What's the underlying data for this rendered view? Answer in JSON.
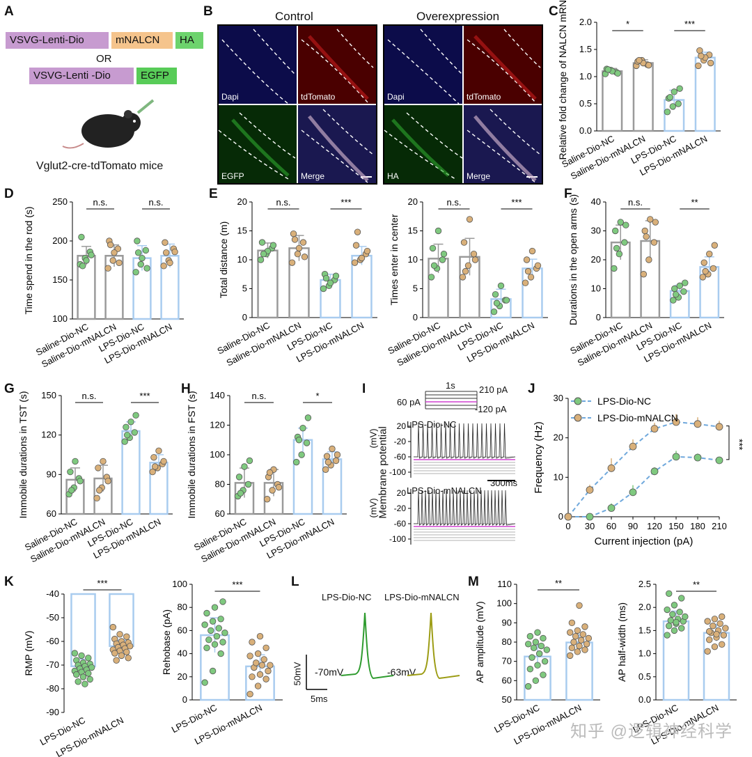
{
  "colors": {
    "green": "#7fc97f",
    "tan": "#d9b07a",
    "gray_bar": "#9a9a9a",
    "blue_bar": "#a9ccef",
    "trace_green": "#2e9b2e",
    "trace_olive": "#9c9c14",
    "vsvg": "#c79bd0",
    "mnalcn": "#f5c48c",
    "ha": "#6dd36d",
    "egfp": "#58cc58"
  },
  "panels": {
    "A": {
      "letter": "A",
      "line1": [
        "VSVG-Lenti-Dio",
        "mNALCN",
        "HA"
      ],
      "or": "OR",
      "line2": [
        "VSVG-Lenti -Dio",
        "EGFP"
      ],
      "mice": "Vglut2-cre-tdTomato mice"
    },
    "B": {
      "letter": "B",
      "control": "Control",
      "overexp": "Overexpression",
      "tiles_ctrl": [
        "Dapi",
        "tdTomato",
        "EGFP",
        "Merge"
      ],
      "tiles_oe": [
        "Dapi",
        "tdTomato",
        "HA",
        "Merge"
      ]
    },
    "C": {
      "letter": "C"
    },
    "D": {
      "letter": "D"
    },
    "E": {
      "letter": "E"
    },
    "F": {
      "letter": "F"
    },
    "G": {
      "letter": "G"
    },
    "H": {
      "letter": "H"
    },
    "I": {
      "letter": "I",
      "t1": "1s",
      "t2": "210 pA",
      "t3": "60 pA",
      "t4": "-120 pA",
      "ylabel": "Membrane potential",
      "unit1": "(mV)",
      "unit2": "(mV)",
      "nc": "LPS-Dio-NC",
      "mn": "LPS-Dio-mNALCN",
      "scale": "300ms",
      "ticks": [
        "20",
        "-20",
        "-60",
        "-100"
      ]
    },
    "J": {
      "letter": "J"
    },
    "K": {
      "letter": "K"
    },
    "L": {
      "letter": "L",
      "nc": "LPS-Dio-NC",
      "mn": "LPS-Dio-mNALCN",
      "v1": "-70mV",
      "v2": "-63mV",
      "sy": "50mV",
      "sx": "5ms"
    },
    "M": {
      "letter": "M"
    }
  },
  "chart_data": [
    {
      "id": "C",
      "type": "bar",
      "ylabel": "Relative fold change of NALCN mRNA",
      "categories": [
        "Saline-Dio-NC",
        "Saline-Dio-mNALCN",
        "LPS-Dio-NC",
        "LPS-Dio-mNALCN"
      ],
      "values": [
        1.1,
        1.25,
        0.57,
        1.35
      ],
      "sd": [
        0.05,
        0.06,
        0.18,
        0.1
      ],
      "ylim": [
        0,
        2.0
      ],
      "yticks": [
        0.0,
        0.5,
        1.0,
        1.5,
        2.0
      ],
      "sig": [
        {
          "pair": [
            0,
            1
          ],
          "label": "*"
        },
        {
          "pair": [
            2,
            3
          ],
          "label": "***"
        }
      ],
      "points": [
        [
          1.05,
          1.12,
          1.08,
          1.14,
          1.1,
          1.06,
          1.13
        ],
        [
          1.2,
          1.3,
          1.22,
          1.28,
          1.25,
          1.21,
          1.3
        ],
        [
          0.35,
          0.45,
          0.5,
          0.6,
          0.72,
          0.78,
          0.62
        ],
        [
          1.2,
          1.3,
          1.4,
          1.48,
          1.35,
          1.25,
          1.38
        ]
      ]
    },
    {
      "id": "D",
      "type": "bar",
      "ylabel": "Time spend in the rod (s)",
      "categories": [
        "Saline-Dio-NC",
        "Saline-Dio-mNALCN",
        "LPS-Dio-NC",
        "LPS-Dio-mNALCN"
      ],
      "values": [
        181,
        181,
        178,
        181
      ],
      "sd": [
        12,
        14,
        16,
        15
      ],
      "ylim": [
        100,
        250
      ],
      "yticks": [
        100,
        150,
        200,
        250
      ],
      "sig": [
        {
          "pair": [
            0,
            1
          ],
          "label": "n.s."
        },
        {
          "pair": [
            2,
            3
          ],
          "label": "n.s."
        }
      ],
      "points": [
        [
          170,
          178,
          186,
          205,
          175,
          182,
          168
        ],
        [
          165,
          175,
          190,
          200,
          185,
          172,
          195
        ],
        [
          160,
          170,
          188,
          200,
          178,
          165,
          185
        ],
        [
          168,
          175,
          190,
          198,
          172,
          186,
          185
        ]
      ]
    },
    {
      "id": "E1",
      "type": "bar",
      "ylabel": "Total distance (m)",
      "categories": [
        "Saline-Dio-NC",
        "Saline-Dio-mNALCN",
        "LPS-Dio-NC",
        "LPS-Dio-mNALCN"
      ],
      "values": [
        11.6,
        12.0,
        6.5,
        10.7
      ],
      "sd": [
        1.3,
        2.2,
        1.0,
        1.6
      ],
      "ylim": [
        0,
        20
      ],
      "yticks": [
        0,
        5,
        10,
        15,
        20
      ],
      "sig": [
        {
          "pair": [
            0,
            1
          ],
          "label": "n.s."
        },
        {
          "pair": [
            2,
            3
          ],
          "label": "***"
        }
      ],
      "points": [
        [
          10,
          11,
          12,
          13,
          11.5,
          12.5,
          11
        ],
        [
          9.5,
          11,
          13,
          14.5,
          12,
          10.5,
          13.5
        ],
        [
          5,
          5.5,
          6.5,
          7.5,
          6,
          7.2,
          6.8
        ],
        [
          9.5,
          10,
          11,
          12.5,
          10.3,
          11.5,
          14.8
        ]
      ]
    },
    {
      "id": "E2",
      "type": "bar",
      "ylabel": "Times enter in center",
      "categories": [
        "Saline-Dio-NC",
        "Saline-Dio-mNALCN",
        "LPS-Dio-NC",
        "LPS-Dio-mNALCN"
      ],
      "values": [
        10.2,
        10.5,
        3.2,
        8.5
      ],
      "sd": [
        2.5,
        3.2,
        1.7,
        1.6
      ],
      "ylim": [
        0,
        20
      ],
      "yticks": [
        0,
        5,
        10,
        15,
        20
      ],
      "sig": [
        {
          "pair": [
            0,
            1
          ],
          "label": "n.s."
        },
        {
          "pair": [
            2,
            3
          ],
          "label": "***"
        }
      ],
      "points": [
        [
          7,
          8.5,
          10,
          12,
          15,
          11,
          9
        ],
        [
          7,
          9,
          11,
          13,
          17,
          10,
          8
        ],
        [
          1,
          2,
          3,
          4,
          5.5,
          3,
          2.5
        ],
        [
          6,
          7,
          8.5,
          10,
          11.5,
          9,
          8
        ]
      ]
    },
    {
      "id": "F",
      "type": "bar",
      "ylabel": "Durations in the open arms (s)",
      "categories": [
        "Saline-Dio-NC",
        "Saline-Dio-mNALCN",
        "LPS-Dio-NC",
        "LPS-Dio-mNALCN"
      ],
      "values": [
        26,
        26.5,
        9.2,
        17.5
      ],
      "sd": [
        6,
        7,
        2,
        3.5
      ],
      "ylim": [
        0,
        40
      ],
      "yticks": [
        0,
        10,
        20,
        30,
        40
      ],
      "sig": [
        {
          "pair": [
            0,
            1
          ],
          "label": "n.s."
        },
        {
          "pair": [
            2,
            3
          ],
          "label": "**"
        }
      ],
      "points": [
        [
          17,
          22,
          26,
          30,
          33,
          32,
          24
        ],
        [
          15,
          20,
          26,
          30,
          34,
          33,
          28
        ],
        [
          6,
          7,
          9,
          10,
          11,
          12,
          8
        ],
        [
          14,
          15,
          17,
          19,
          22,
          25,
          16
        ]
      ]
    },
    {
      "id": "G",
      "type": "bar",
      "ylabel": "Immobile durations in TST (s)",
      "categories": [
        "Saline-Dio-NC",
        "Saline-Dio-mNALCN",
        "LPS-Dio-NC",
        "LPS-Dio-mNALCN"
      ],
      "values": [
        86,
        87,
        123,
        99
      ],
      "sd": [
        9,
        10,
        7,
        6
      ],
      "ylim": [
        60,
        150
      ],
      "yticks": [
        60,
        90,
        120,
        150
      ],
      "sig": [
        {
          "pair": [
            0,
            1
          ],
          "label": "n.s."
        },
        {
          "pair": [
            2,
            3
          ],
          "label": "***"
        }
      ],
      "points": [
        [
          75,
          80,
          87,
          92,
          100,
          85,
          78
        ],
        [
          72,
          80,
          88,
          95,
          100,
          85,
          78
        ],
        [
          115,
          118,
          122,
          126,
          130,
          135,
          120
        ],
        [
          92,
          95,
          98,
          103,
          108,
          100,
          96
        ]
      ]
    },
    {
      "id": "H",
      "type": "bar",
      "ylabel": "Immobile durations in FST (s)",
      "categories": [
        "Saline-Dio-NC",
        "Saline-Dio-mNALCN",
        "LPS-Dio-NC",
        "LPS-Dio-mNALCN"
      ],
      "values": [
        81,
        81,
        110,
        97
      ],
      "sd": [
        10,
        9,
        8,
        5
      ],
      "ylim": [
        60,
        140
      ],
      "yticks": [
        60,
        80,
        100,
        120,
        140
      ],
      "sig": [
        {
          "pair": [
            0,
            1
          ],
          "label": "n.s."
        },
        {
          "pair": [
            2,
            3
          ],
          "label": "*"
        }
      ],
      "points": [
        [
          72,
          76,
          80,
          85,
          92,
          96,
          74
        ],
        [
          70,
          76,
          80,
          85,
          90,
          78,
          88
        ],
        [
          95,
          100,
          108,
          112,
          118,
          125,
          110
        ],
        [
          90,
          93,
          96,
          99,
          104,
          100,
          95
        ]
      ]
    },
    {
      "id": "J",
      "type": "line",
      "xlabel": "Current injection (pA)",
      "ylabel": "Frequency (Hz)",
      "x": [
        0,
        30,
        60,
        90,
        120,
        150,
        180,
        210
      ],
      "xlim": [
        0,
        210
      ],
      "ylim": [
        0,
        30
      ],
      "yticks": [
        0,
        10,
        20,
        30
      ],
      "series": [
        {
          "name": "LPS-Dio-NC",
          "values": [
            0,
            0,
            2.2,
            6.2,
            11.5,
            15.2,
            15.0,
            14.3
          ],
          "err": [
            0,
            0,
            1.2,
            1.8,
            1.0,
            1.5,
            1.0,
            0.8
          ]
        },
        {
          "name": "LPS-Dio-mNALCN",
          "values": [
            0,
            6.8,
            12.3,
            17.8,
            22.3,
            24.0,
            23.5,
            22.8
          ],
          "err": [
            0,
            1.3,
            2.5,
            1.8,
            1.5,
            2.0,
            1.7,
            1.5
          ]
        }
      ],
      "sig": "***"
    },
    {
      "id": "K1",
      "type": "bar",
      "ylabel": "RMP (mV)",
      "categories": [
        "LPS-Dio-NC",
        "LPS-Dio-mNALCN"
      ],
      "values": [
        -70.5,
        -62
      ],
      "sd": [
        3,
        2.5
      ],
      "ylim": [
        -90,
        -40
      ],
      "yticks": [
        -90,
        -80,
        -70,
        -60,
        -50,
        -40
      ],
      "sig": [
        {
          "pair": [
            0,
            1
          ],
          "label": "***"
        }
      ],
      "points": [
        [
          -65,
          -66,
          -67,
          -68,
          -69,
          -69.5,
          -70,
          -70.5,
          -71,
          -71.5,
          -72,
          -72.5,
          -73,
          -73.5,
          -74,
          -75,
          -76,
          -77,
          -78
        ],
        [
          -54,
          -57,
          -58,
          -59,
          -60,
          -60.5,
          -61,
          -61.5,
          -62,
          -62.5,
          -63,
          -63.5,
          -64,
          -64.5,
          -65,
          -66,
          -67,
          -68
        ]
      ]
    },
    {
      "id": "K2",
      "type": "bar",
      "ylabel": "Rehobase (pA)",
      "categories": [
        "LPS-Dio-NC",
        "LPS-Dio-mNALCN"
      ],
      "values": [
        56,
        29
      ],
      "sd": [
        15,
        10
      ],
      "ylim": [
        0,
        100
      ],
      "yticks": [
        0,
        20,
        40,
        60,
        80,
        100
      ],
      "sig": [
        {
          "pair": [
            0,
            1
          ],
          "label": "***"
        }
      ],
      "points": [
        [
          15,
          25,
          40,
          45,
          48,
          50,
          52,
          55,
          58,
          60,
          62,
          65,
          68,
          70,
          75,
          80,
          85
        ],
        [
          5,
          12,
          18,
          20,
          22,
          25,
          28,
          30,
          30,
          32,
          35,
          38,
          40,
          45,
          50,
          55
        ]
      ]
    },
    {
      "id": "M1",
      "type": "bar",
      "ylabel": "AP amplitude (mV)",
      "categories": [
        "LPS-Dio-NC",
        "LPS-Dio-mNALCN"
      ],
      "values": [
        72.5,
        79.8
      ],
      "sd": [
        6,
        4
      ],
      "ylim": [
        50,
        110
      ],
      "yticks": [
        50,
        60,
        70,
        80,
        90,
        100,
        110
      ],
      "sig": [
        {
          "pair": [
            0,
            1
          ],
          "label": "**"
        }
      ],
      "points": [
        [
          57,
          60,
          63,
          66,
          68,
          70,
          72,
          74,
          76,
          77,
          78,
          79,
          80,
          82,
          83,
          85
        ],
        [
          73,
          75,
          76,
          77,
          78,
          79,
          80,
          81,
          82,
          83,
          84,
          85,
          86,
          88,
          90,
          99
        ]
      ]
    },
    {
      "id": "M2",
      "type": "bar",
      "ylabel": "AP half-width (ms)",
      "categories": [
        "LPS-Dio-NC",
        "LPS-Dio-mNALCN"
      ],
      "values": [
        1.7,
        1.45
      ],
      "sd": [
        0.22,
        0.18
      ],
      "ylim": [
        0,
        2.5
      ],
      "yticks": [
        0.0,
        0.5,
        1.0,
        1.5,
        2.0,
        2.5
      ],
      "sig": [
        {
          "pair": [
            0,
            1
          ],
          "label": "**"
        }
      ],
      "points": [
        [
          1.4,
          1.5,
          1.55,
          1.6,
          1.65,
          1.7,
          1.72,
          1.75,
          1.8,
          1.85,
          1.9,
          1.95,
          2.05,
          2.2,
          2.3,
          1.68
        ],
        [
          1.05,
          1.15,
          1.2,
          1.3,
          1.35,
          1.4,
          1.45,
          1.5,
          1.55,
          1.6,
          1.65,
          1.7,
          1.75,
          1.8,
          1.48,
          1.42
        ]
      ]
    }
  ],
  "watermark": "知乎 @逻辑神经科学"
}
